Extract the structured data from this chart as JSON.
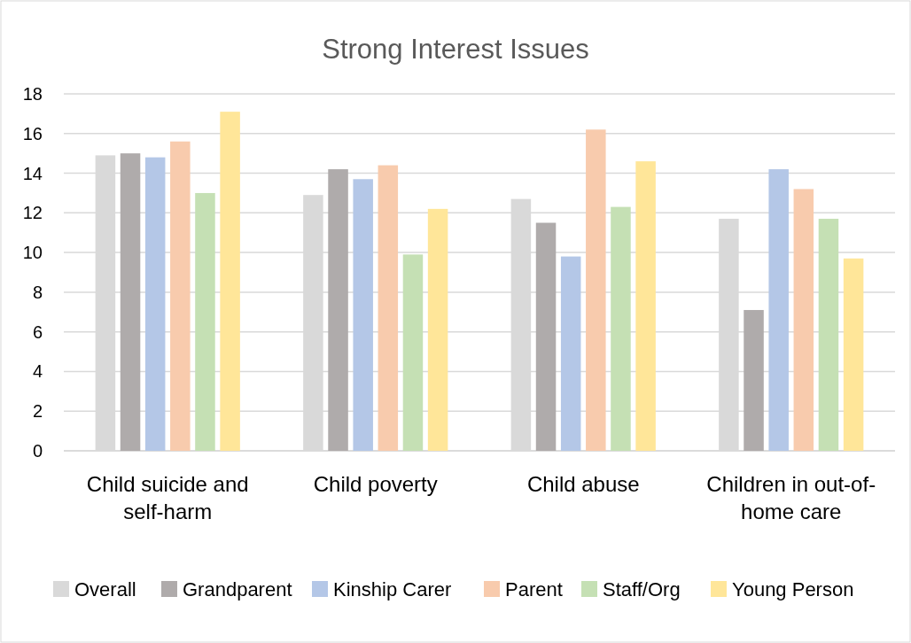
{
  "chart_data": {
    "type": "bar",
    "title": "Strong Interest Issues",
    "categories": [
      "Child suicide and self-harm",
      "Child poverty",
      "Child abuse",
      "Children in out-of-home care"
    ],
    "series": [
      {
        "name": "Overall",
        "color": "#d9d9d9",
        "values": [
          14.9,
          12.9,
          12.7,
          11.7
        ]
      },
      {
        "name": "Grandparent",
        "color": "#afabab",
        "values": [
          15.0,
          14.2,
          11.5,
          7.1
        ]
      },
      {
        "name": "Kinship Carer",
        "color": "#b4c7e7",
        "values": [
          14.8,
          13.7,
          9.8,
          14.2
        ]
      },
      {
        "name": "Parent",
        "color": "#f8cbad",
        "values": [
          15.6,
          14.4,
          16.2,
          13.2
        ]
      },
      {
        "name": "Staff/Org",
        "color": "#c5e0b4",
        "values": [
          13.0,
          9.9,
          12.3,
          11.7
        ]
      },
      {
        "name": "Young Person",
        "color": "#ffe699",
        "values": [
          17.1,
          12.2,
          14.6,
          9.7
        ]
      }
    ],
    "ylim": [
      0,
      18
    ],
    "yticks": [
      0,
      2,
      4,
      6,
      8,
      10,
      12,
      14,
      16,
      18
    ],
    "grid": true,
    "legend": "bottom"
  }
}
